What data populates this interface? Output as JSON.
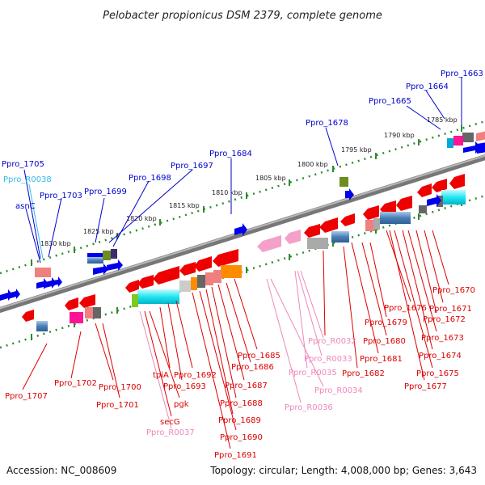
{
  "title": "Pelobacter propionicus DSM 2379, complete genome",
  "footer": {
    "accession": "Accession: NC_008609",
    "topology": "Topology: circular; Length: 4,008,000 bp; Genes: 3,643"
  },
  "colors": {
    "axis": "#8a8a8a",
    "tick": "#2e8b2e",
    "top_strand_label": "#0000cc",
    "rna_top_label": "#33bbee",
    "bottom_strand_label": "#dd0000",
    "rna_bottom_label": "#ee88bb"
  },
  "kbp_ticks": [
    "1785 kbp",
    "1790 kbp",
    "1795 kbp",
    "1800 kbp",
    "1805 kbp",
    "1810 kbp",
    "1815 kbp",
    "1820 kbp",
    "1825 kbp",
    "1830 kbp"
  ],
  "top_labels": [
    {
      "text": "Ppro_1663",
      "type": "gene"
    },
    {
      "text": "Ppro_1664",
      "type": "gene"
    },
    {
      "text": "Ppro_1665",
      "type": "gene"
    },
    {
      "text": "Ppro_1678",
      "type": "gene"
    },
    {
      "text": "Ppro_1684",
      "type": "gene"
    },
    {
      "text": "Ppro_1697",
      "type": "gene"
    },
    {
      "text": "Ppro_1698",
      "type": "gene"
    },
    {
      "text": "Ppro_1699",
      "type": "gene"
    },
    {
      "text": "Ppro_1703",
      "type": "gene"
    },
    {
      "text": "asnC",
      "type": "gene"
    },
    {
      "text": "Ppro_R0038",
      "type": "rna"
    },
    {
      "text": "Ppro_1705",
      "type": "gene"
    }
  ],
  "bottom_labels": [
    {
      "text": "Ppro_1670",
      "type": "gene"
    },
    {
      "text": "Ppro_1671",
      "type": "gene"
    },
    {
      "text": "Ppro_1672",
      "type": "gene"
    },
    {
      "text": "Ppro_1673",
      "type": "gene"
    },
    {
      "text": "Ppro_1674",
      "type": "gene"
    },
    {
      "text": "Ppro_1675",
      "type": "gene"
    },
    {
      "text": "Ppro_1676",
      "type": "gene"
    },
    {
      "text": "Ppro_1677",
      "type": "gene"
    },
    {
      "text": "Ppro_1679",
      "type": "gene"
    },
    {
      "text": "Ppro_1680",
      "type": "gene"
    },
    {
      "text": "Ppro_1681",
      "type": "gene"
    },
    {
      "text": "Ppro_1682",
      "type": "gene"
    },
    {
      "text": "Ppro_R0032",
      "type": "rna"
    },
    {
      "text": "Ppro_R0033",
      "type": "rna"
    },
    {
      "text": "Ppro_R0035",
      "type": "rna"
    },
    {
      "text": "Ppro_R0034",
      "type": "rna"
    },
    {
      "text": "Ppro_R0036",
      "type": "rna"
    },
    {
      "text": "Ppro_1685",
      "type": "gene"
    },
    {
      "text": "Ppro_1686",
      "type": "gene"
    },
    {
      "text": "Ppro_1687",
      "type": "gene"
    },
    {
      "text": "Ppro_1688",
      "type": "gene"
    },
    {
      "text": "Ppro_1689",
      "type": "gene"
    },
    {
      "text": "Ppro_1690",
      "type": "gene"
    },
    {
      "text": "Ppro_1691",
      "type": "gene"
    },
    {
      "text": "tpiA",
      "type": "gene"
    },
    {
      "text": "Ppro_1692",
      "type": "gene"
    },
    {
      "text": "Ppro_1693",
      "type": "gene"
    },
    {
      "text": "pgk",
      "type": "gene"
    },
    {
      "text": "secG",
      "type": "gene"
    },
    {
      "text": "Ppro_R0037",
      "type": "rna"
    },
    {
      "text": "Ppro_1700",
      "type": "gene"
    },
    {
      "text": "Ppro_1701",
      "type": "gene"
    },
    {
      "text": "Ppro_1702",
      "type": "gene"
    },
    {
      "text": "Ppro_1707",
      "type": "gene"
    }
  ]
}
